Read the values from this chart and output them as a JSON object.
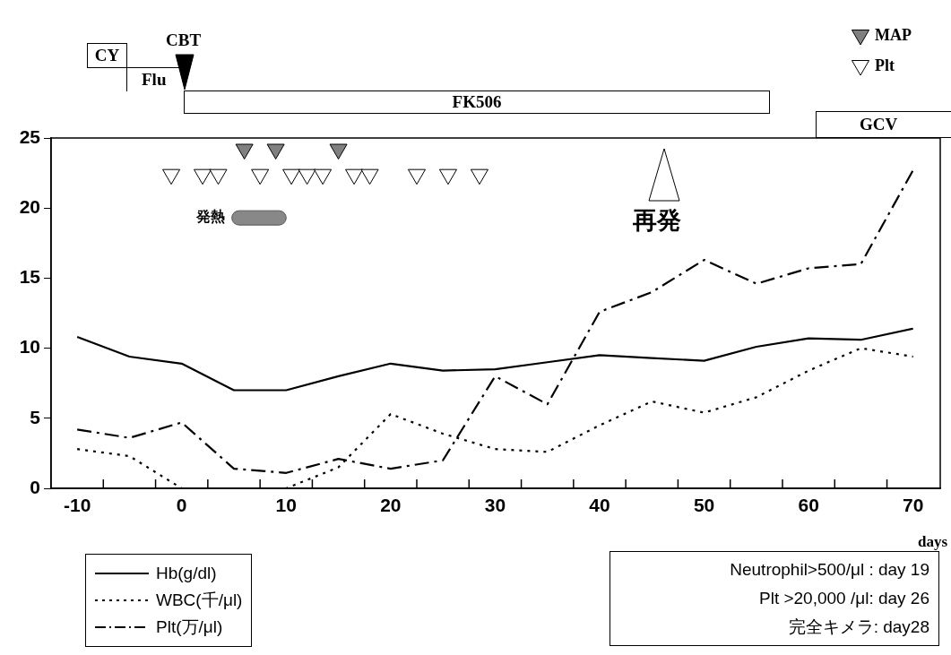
{
  "chart_data": {
    "type": "line",
    "x": [
      -10,
      -5,
      0,
      5,
      10,
      15,
      20,
      25,
      30,
      35,
      40,
      45,
      50,
      55,
      60,
      65,
      70
    ],
    "xlabel": "days",
    "xlim": [
      -12.5,
      72.6
    ],
    "xticks": [
      -10,
      {
        "value": -7.5,
        "label": null
      },
      {
        "value": -2.5,
        "label": null
      },
      0,
      {
        "value": 2.5,
        "label": null
      },
      {
        "value": 7.5,
        "label": null
      },
      10,
      {
        "value": 12.5,
        "label": null
      },
      {
        "value": 17.5,
        "label": null
      },
      20,
      {
        "value": 22.5,
        "label": null
      },
      {
        "value": 27.5,
        "label": null
      },
      30,
      {
        "value": 32.5,
        "label": null
      },
      {
        "value": 37.5,
        "label": null
      },
      40,
      {
        "value": 42.5,
        "label": null
      },
      {
        "value": 47.5,
        "label": null
      },
      50,
      {
        "value": 52.5,
        "label": null
      },
      {
        "value": 57.5,
        "label": null
      },
      60,
      {
        "value": 62.5,
        "label": null
      },
      {
        "value": 67.5,
        "label": null
      },
      70
    ],
    "ylim": [
      0,
      25
    ],
    "yticks": [
      0,
      5,
      10,
      15,
      20,
      25
    ],
    "grid": false,
    "legend": "bottom left",
    "marker": "none",
    "series": [
      {
        "name": "Hb(g/dl)",
        "color": "#000000",
        "line_style": "solid",
        "values": [
          10.8,
          9.4,
          8.9,
          7.0,
          7.0,
          8.0,
          8.9,
          8.4,
          8.5,
          9.0,
          9.5,
          9.3,
          9.1,
          10.1,
          10.7,
          10.6,
          11.4
        ]
      },
      {
        "name": "WBC(千/μl)",
        "color": "#000000",
        "line_style": "dotted",
        "values": [
          2.8,
          2.3,
          0,
          0,
          0,
          1.5,
          5.3,
          3.9,
          2.8,
          2.6,
          4.5,
          6.2,
          5.4,
          6.5,
          8.4,
          10.0,
          9.4
        ]
      },
      {
        "name": "Plt(万/μl)",
        "color": "#000000",
        "line_style": "dashed",
        "values": [
          4.2,
          3.6,
          4.7,
          1.4,
          1.1,
          2.1,
          1.4,
          2.0,
          8.0,
          6.0,
          12.6,
          14.0,
          16.3,
          14.6,
          15.7,
          16.0,
          22.7
        ]
      },
      {
        "name": "MAP",
        "type": "scatter",
        "marker": "triangle",
        "color": "#808080",
        "x": [
          6,
          9,
          15
        ],
        "values": [
          24.2,
          24.2,
          24.2
        ]
      },
      {
        "name": "Plt",
        "type": "scatter",
        "marker": "triangle",
        "color": "#ffffff",
        "x": [
          -1,
          2,
          3.5,
          7.5,
          10.5,
          12,
          13.5,
          16.5,
          18,
          22.5,
          25.5,
          28.5
        ],
        "values": [
          22.4,
          22.4,
          22.4,
          22.4,
          22.4,
          22.4,
          22.4,
          22.4,
          22.4,
          22.4,
          22.4,
          22.4
        ]
      }
    ],
    "bands": [
      {
        "axis": "x",
        "from": 4.8,
        "to": 10,
        "label": "発熱",
        "color": "#888888"
      }
    ],
    "annotations": [
      "CY",
      "Flu",
      "FK506",
      "GCV",
      "CBT",
      "再発",
      "Neutrophil>500/μl : day 19",
      "Plt >20,000 /μl: day 26",
      "完全キメラ:  day28"
    ]
  }
}
